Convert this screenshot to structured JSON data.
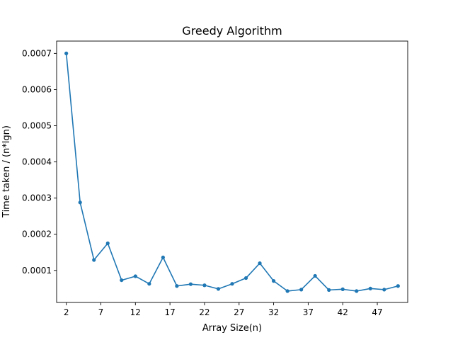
{
  "chart_data": {
    "type": "line",
    "title": "Greedy Algorithm",
    "xlabel": "Array Size(n)",
    "ylabel": "Time taken / (n*lgn)",
    "xlim": [
      0.6,
      51.4
    ],
    "ylim": [
      1.15e-05,
      0.000734
    ],
    "xticks": [
      2,
      7,
      12,
      17,
      22,
      27,
      32,
      37,
      42,
      47
    ],
    "yticks": [
      0.0001,
      0.0002,
      0.0003,
      0.0004,
      0.0005,
      0.0006,
      0.0007
    ],
    "ytick_labels": [
      "0.0001",
      "0.0002",
      "0.0003",
      "0.0004",
      "0.0005",
      "0.0006",
      "0.0007"
    ],
    "grid": false,
    "series": [
      {
        "color": "#1f77b4",
        "marker": "circle",
        "x": [
          2,
          4,
          6,
          8,
          10,
          12,
          14,
          16,
          18,
          20,
          22,
          24,
          26,
          28,
          30,
          32,
          34,
          36,
          38,
          40,
          42,
          44,
          46,
          48,
          50
        ],
        "y": [
          0.0007,
          0.000288,
          0.000129,
          0.000175,
          7.3e-05,
          8.4e-05,
          6.3e-05,
          0.000136,
          5.7e-05,
          6.2e-05,
          5.9e-05,
          4.9e-05,
          6.3e-05,
          7.9e-05,
          0.00012,
          7.1e-05,
          4.3e-05,
          4.7e-05,
          8.5e-05,
          4.6e-05,
          4.8e-05,
          4.3e-05,
          5e-05,
          4.7e-05,
          5.7e-05
        ]
      }
    ]
  }
}
